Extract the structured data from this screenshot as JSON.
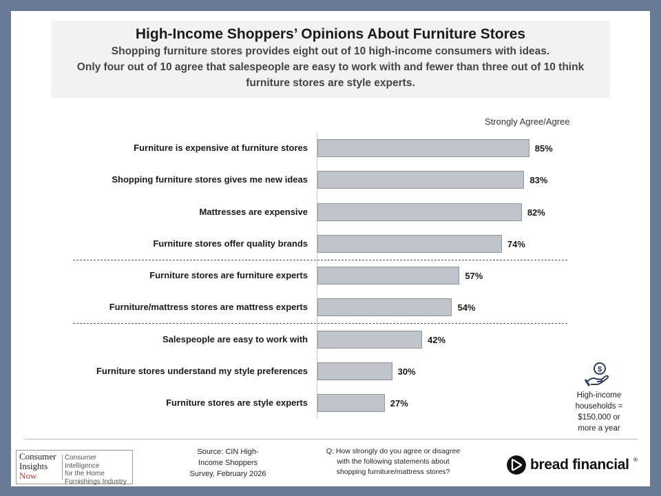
{
  "header": {
    "title": "High-Income Shoppers’ Opinions About Furniture Stores",
    "subtitle_lines": [
      "Shopping furniture stores provides eight out of 10 high-income consumers with ideas.",
      "Only four out of 10 agree that salespeople are easy to work with and fewer than three out of 10 think",
      "furniture stores are style experts."
    ]
  },
  "chart_data": {
    "type": "bar",
    "orientation": "horizontal",
    "categories": [
      "Furniture is expensive at furniture stores",
      "Shopping furniture stores gives me new ideas",
      "Mattresses are expensive",
      "Furniture stores offer quality brands",
      "Furniture stores are furniture experts",
      "Furniture/mattress stores are mattress experts",
      "Salespeople are easy to work with",
      "Furniture stores understand my style preferences",
      "Furniture stores are style experts"
    ],
    "series": [
      {
        "name": "Strongly Agree/Agree",
        "values": [
          85,
          83,
          82,
          74,
          57,
          54,
          42,
          30,
          27
        ]
      }
    ],
    "value_labels": [
      "85%",
      "83%",
      "82%",
      "74%",
      "57%",
      "54%",
      "42%",
      "30%",
      "27%"
    ],
    "xlim": [
      0,
      100
    ],
    "grid": false,
    "legend": "top-right",
    "group_dividers_after_index": [
      3,
      5
    ],
    "colors": {
      "bar_fill": "#bfc4cc",
      "bar_border": "#8e949c"
    }
  },
  "note": {
    "icon": "money-hand-icon",
    "text_lines": [
      "High-income",
      "households =",
      "$150,000 or",
      "more a year"
    ]
  },
  "footer": {
    "logo_cin_lines": [
      "Consumer",
      "Insights",
      "Now"
    ],
    "logo_cin_tagline_lines": [
      "Consumer Intelligence",
      "for the Home",
      "Furnishings Industry"
    ],
    "source_lines": [
      "Source: CIN High-",
      "Income Shoppers",
      "Survey, February 2026"
    ],
    "question_lines": [
      "Q: How strongly do you agree or disagree",
      "with the following statements about",
      "shopping furniture/mattress stores?"
    ],
    "brand": "bread financial",
    "brand_mark": "®"
  }
}
